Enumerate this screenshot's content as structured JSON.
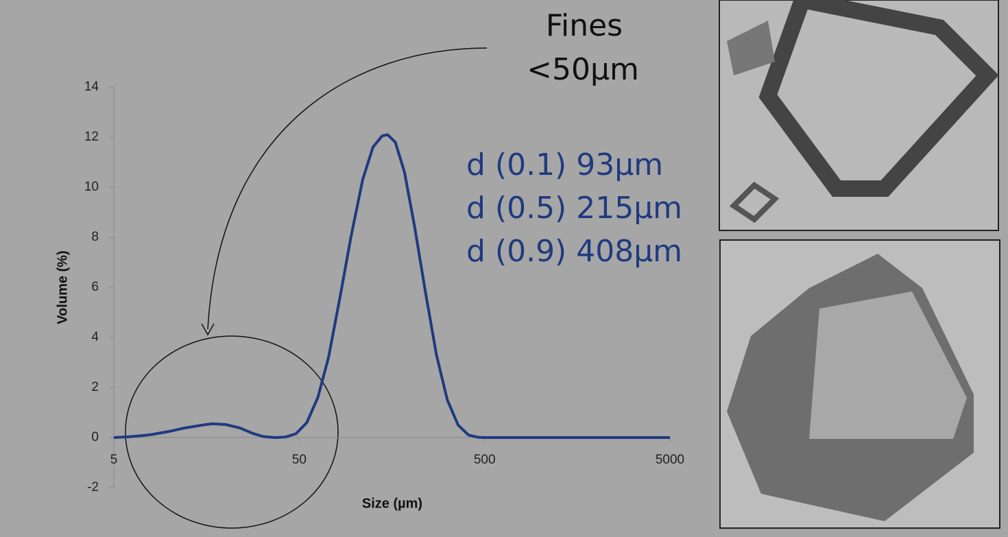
{
  "chart_data": {
    "type": "line",
    "x_label": "Size (µm)",
    "y_label": "Volume (%)",
    "xscale": "log",
    "x": [
      5,
      6,
      7,
      8,
      10,
      12,
      15,
      17,
      20,
      24,
      28,
      32,
      37,
      42,
      48,
      55,
      63,
      72,
      83,
      95,
      110,
      125,
      140,
      150,
      165,
      185,
      210,
      240,
      275,
      315,
      360,
      410,
      460,
      500,
      1000,
      2000,
      5000
    ],
    "values": [
      0,
      0.03,
      0.07,
      0.12,
      0.25,
      0.38,
      0.5,
      0.55,
      0.52,
      0.38,
      0.17,
      0.04,
      0,
      0.02,
      0.15,
      0.6,
      1.6,
      3.2,
      5.6,
      8.0,
      10.3,
      11.6,
      12.05,
      12.1,
      11.8,
      10.6,
      8.4,
      5.8,
      3.3,
      1.5,
      0.5,
      0.1,
      0.01,
      0,
      0,
      0,
      0
    ],
    "color": "#1f3a80",
    "xlim": [
      5,
      5000
    ],
    "xticks": [
      5,
      50,
      500,
      5000
    ],
    "ylim": [
      -2,
      14
    ],
    "yticks": [
      -2,
      0,
      2,
      4,
      6,
      8,
      10,
      12,
      14
    ],
    "annotations": {
      "fines": [
        "Fines",
        "<50µm"
      ],
      "percentiles": [
        "d (0.1) 93µm",
        "d (0.5) 215µm",
        "d (0.9) 408µm"
      ]
    }
  }
}
